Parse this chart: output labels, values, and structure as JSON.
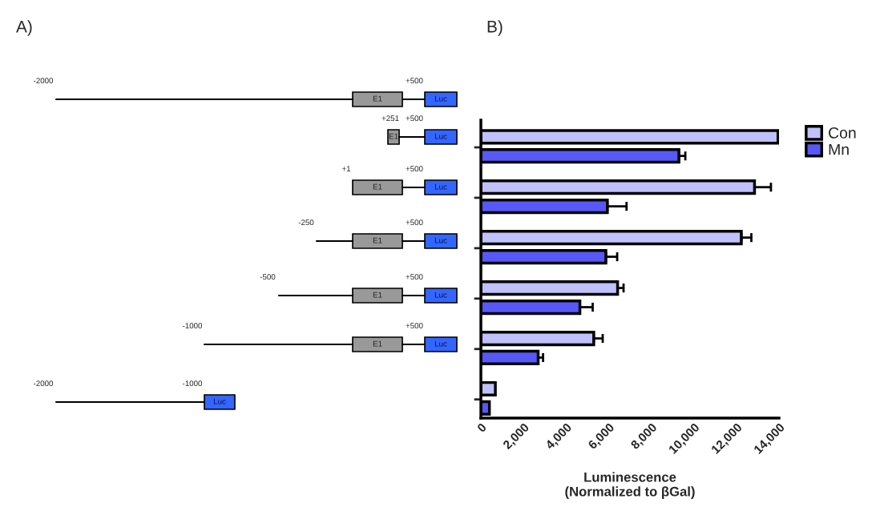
{
  "chart_data": [
    {
      "type": "other",
      "title": "A)",
      "annotations": [
        "-2000",
        "+500",
        "E1",
        "Luc",
        "+251",
        "+500",
        "E1",
        "Luc",
        "+1",
        "+500",
        "E1",
        "Luc",
        "-250",
        "+500",
        "E1",
        "Luc",
        "-500",
        "+500",
        "E1",
        "Luc",
        "-1000",
        "+500",
        "E1",
        "Luc",
        "-2000",
        "-1000",
        "Luc"
      ]
    },
    {
      "type": "bar",
      "orientation": "horizontal",
      "title": "B)",
      "categories": [
        null,
        null,
        null,
        null,
        null,
        null
      ],
      "series": [
        {
          "name": "Con",
          "color": "#c0c0fa",
          "values": [
            13950,
            12850,
            12230,
            6420,
            5300,
            680
          ],
          "errors": [
            null,
            [
              12850,
              13620
            ],
            [
              12230,
              12700
            ],
            [
              6420,
              6700
            ],
            [
              5300,
              5720
            ],
            null
          ]
        },
        {
          "name": "Mn",
          "color": "#5858f8",
          "values": [
            9300,
            5940,
            5870,
            4650,
            2690,
            400
          ],
          "errors": [
            [
              9300,
              9600
            ],
            [
              5940,
              6840
            ],
            [
              5870,
              6400
            ],
            [
              4650,
              5250
            ],
            [
              2690,
              2920
            ],
            null
          ]
        }
      ],
      "xlabel": "Luminescence\n(Normalized to βGal)",
      "xlim": [
        0,
        14000
      ],
      "xticks": [
        0,
        {
          "value": 2000,
          "label": "2,000"
        },
        {
          "value": 4000,
          "label": "4,000"
        },
        {
          "value": 6000,
          "label": "6,000"
        },
        {
          "value": 8000,
          "label": "8,000"
        },
        {
          "value": 10000,
          "label": "10,000"
        },
        {
          "value": 12000,
          "label": "12,000"
        },
        {
          "value": 14000,
          "label": "14,000"
        }
      ],
      "tick_labels": "x",
      "legend": "top right",
      "grid": false
    }
  ]
}
